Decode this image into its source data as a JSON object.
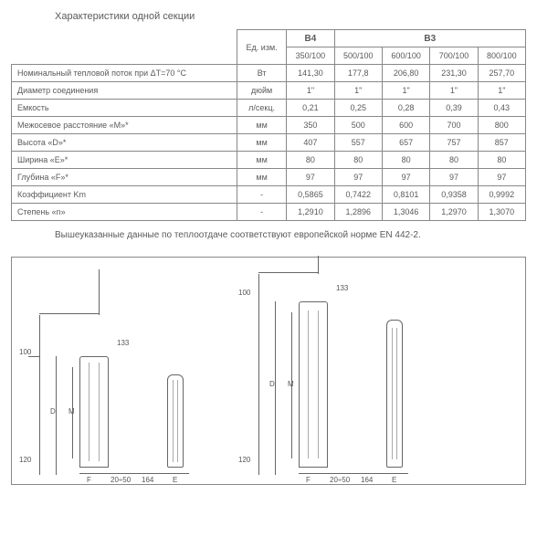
{
  "title": "Характеристики одной секции",
  "unit_header": "Ед. изм.",
  "models": {
    "B4": "B4",
    "B3": "B3"
  },
  "size_headers": [
    "350/100",
    "500/100",
    "600/100",
    "700/100",
    "800/100"
  ],
  "rows": [
    {
      "label": "Номинальный тепловой поток при ΔT=70 °С",
      "unit": "Вт",
      "vals": [
        "141,30",
        "177,8",
        "206,80",
        "231,30",
        "257,70"
      ]
    },
    {
      "label": "Диаметр соединения",
      "unit": "дюйм",
      "vals": [
        "1\"",
        "1\"",
        "1\"",
        "1\"",
        "1\""
      ]
    },
    {
      "label": "Емкость",
      "unit": "л/секц.",
      "vals": [
        "0,21",
        "0,25",
        "0,28",
        "0,39",
        "0,43"
      ]
    },
    {
      "label": "Межосевое расстояние «M»*",
      "unit": "мм",
      "vals": [
        "350",
        "500",
        "600",
        "700",
        "800"
      ]
    },
    {
      "label": "Высота «D»*",
      "unit": "мм",
      "vals": [
        "407",
        "557",
        "657",
        "757",
        "857"
      ]
    },
    {
      "label": "Ширина «E»*",
      "unit": "мм",
      "vals": [
        "80",
        "80",
        "80",
        "80",
        "80"
      ]
    },
    {
      "label": "Глубина «F»*",
      "unit": "мм",
      "vals": [
        "97",
        "97",
        "97",
        "97",
        "97"
      ]
    },
    {
      "label": "Коэффициент Km",
      "unit": "-",
      "vals": [
        "0,5865",
        "0,7422",
        "0,8101",
        "0,9358",
        "0,9992"
      ]
    },
    {
      "label": "Степень «n»",
      "unit": "-",
      "vals": [
        "1,2910",
        "1,2896",
        "1,3046",
        "1,2970",
        "1,3070"
      ]
    }
  ],
  "note": "Вышеуказанные данные по теплоотдаче соответствуют европейской норме EN 442-2.",
  "dims": {
    "top_offset": "100",
    "bracket_h": "133",
    "bottom_offset": "120",
    "F": "F",
    "gap": "20÷50",
    "spacer": "164",
    "E": "E",
    "D": "D",
    "M": "M"
  },
  "colors": {
    "text": "#5a5a5a",
    "border": "#888",
    "bg": "#ffffff"
  }
}
